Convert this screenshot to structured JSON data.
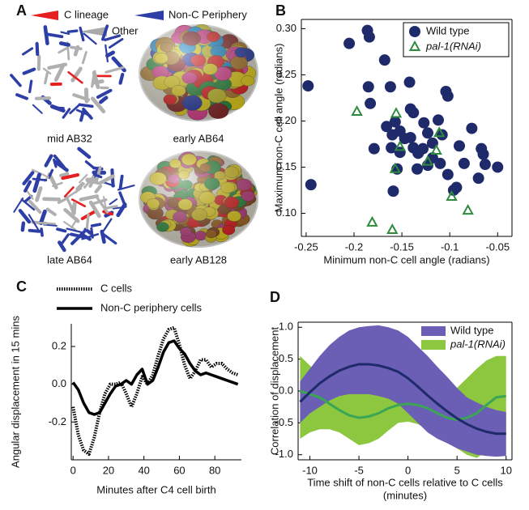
{
  "panel_a": {
    "panel": "A",
    "legend": [
      "C lineage",
      "Non-C Periphery",
      "Other"
    ],
    "captions": [
      "mid AB32",
      "early AB64",
      "late AB64",
      "early AB128"
    ]
  },
  "chart_data": [
    {
      "type": "scatter",
      "panel": "B",
      "xlabel": "Minimum non-C cell angle (radians)",
      "ylabel": "Maximum non-C cell angle (radians)",
      "xlim": [
        -0.255,
        -0.035
      ],
      "ylim": [
        0.075,
        0.31
      ],
      "xticks": [
        -0.25,
        -0.2,
        -0.15,
        -0.1,
        -0.05
      ],
      "yticks": [
        {
          "value": 0.1,
          "label": "0.10"
        },
        0.15,
        {
          "value": 0.2,
          "label": "0.20"
        },
        0.25,
        {
          "value": 0.3,
          "label": "0.30"
        }
      ],
      "legend": "upper right",
      "series": [
        {
          "name": "Wild type",
          "color": "#1f2a6b",
          "marker": "circle",
          "x": [
            -0.248,
            -0.245,
            -0.205,
            -0.186,
            -0.184,
            -0.185,
            -0.183,
            -0.168,
            -0.162,
            -0.166,
            -0.179,
            -0.161,
            -0.159,
            -0.152,
            -0.142,
            -0.141,
            -0.138,
            -0.147,
            -0.141,
            -0.138,
            -0.133,
            -0.152,
            -0.127,
            -0.123,
            -0.123,
            -0.118,
            -0.118,
            -0.112,
            -0.108,
            -0.104,
            -0.102,
            -0.102,
            -0.096,
            -0.093,
            -0.09,
            -0.085,
            -0.077,
            -0.07,
            -0.067,
            -0.065,
            -0.063,
            -0.05,
            -0.155,
            -0.16,
            -0.128,
            -0.157,
            -0.134,
            -0.11
          ],
          "values": [
            0.238,
            0.131,
            0.284,
            0.298,
            0.291,
            0.237,
            0.219,
            0.266,
            0.237,
            0.194,
            0.17,
            0.171,
            0.124,
            0.189,
            0.242,
            0.213,
            0.209,
            0.181,
            0.182,
            0.171,
            0.165,
            0.166,
            0.198,
            0.187,
            0.152,
            0.176,
            0.16,
            0.201,
            0.185,
            0.232,
            0.227,
            0.142,
            0.125,
            0.128,
            0.173,
            0.154,
            0.192,
            0.138,
            0.17,
            0.164,
            0.153,
            0.15,
            0.148,
            0.185,
            0.17,
            0.199,
            0.148,
            0.154
          ]
        },
        {
          "name": "pal-1(RNAi)",
          "color": "#2e8b3e",
          "marker": "triangle",
          "x": [
            -0.197,
            -0.156,
            -0.152,
            -0.157,
            -0.123,
            -0.111,
            -0.114,
            -0.098,
            -0.081,
            -0.181,
            -0.16
          ],
          "values": [
            0.21,
            0.208,
            0.172,
            0.148,
            0.156,
            0.187,
            0.168,
            0.118,
            0.103,
            0.09,
            0.082
          ]
        }
      ]
    },
    {
      "type": "line",
      "panel": "C",
      "xlabel": "Minutes after C4 cell birth",
      "ylabel": "Angular displacement in 15 mins",
      "xlim": [
        -1,
        95
      ],
      "ylim": [
        -0.4,
        0.32
      ],
      "xticks": [
        0,
        20,
        40,
        60,
        80
      ],
      "yticks": [
        -0.2,
        {
          "value": 0,
          "label": "0.0"
        },
        0.2
      ],
      "legend": "upper left",
      "x": [
        0,
        3,
        6,
        9,
        12,
        15,
        18,
        21,
        24,
        27,
        30,
        33,
        36,
        39,
        42,
        45,
        48,
        51,
        54,
        57,
        60,
        63,
        66,
        69,
        72,
        75,
        78,
        81,
        84,
        87,
        90,
        93
      ],
      "series": [
        {
          "name": "C cells",
          "color": "#000000",
          "linestyle": "dotted",
          "values": [
            -0.12,
            -0.27,
            -0.35,
            -0.37,
            -0.28,
            -0.15,
            -0.05,
            0.0,
            0.0,
            0.01,
            -0.05,
            -0.12,
            -0.05,
            0.04,
            0.0,
            0.05,
            0.15,
            0.24,
            0.29,
            0.3,
            0.21,
            0.1,
            0.03,
            0.07,
            0.13,
            0.13,
            0.09,
            0.11,
            0.11,
            0.08,
            0.06,
            0.05
          ]
        },
        {
          "name": "Non-C periphery cells",
          "color": "#000000",
          "linestyle": "solid",
          "values": [
            0.01,
            -0.03,
            -0.1,
            -0.15,
            -0.16,
            -0.15,
            -0.1,
            -0.05,
            -0.01,
            0.0,
            0.02,
            0.0,
            0.05,
            0.08,
            0.0,
            0.02,
            0.09,
            0.17,
            0.22,
            0.23,
            0.19,
            0.16,
            0.11,
            0.07,
            0.05,
            0.06,
            0.05,
            0.04,
            0.03,
            0.02,
            0.01,
            0.0
          ]
        }
      ]
    },
    {
      "type": "band",
      "panel": "D",
      "xlabel": [
        "Time shift of non-C cells relative to C cells",
        "(minutes)"
      ],
      "ylabel": "Correlation of displacement",
      "xlim": [
        -11.2,
        10.6
      ],
      "ylim": [
        -1.08,
        1.08
      ],
      "xticks": [
        -10,
        -5,
        0,
        5,
        10
      ],
      "yticks": [
        {
          "value": -1,
          "label": "-1.0"
        },
        -0.5,
        {
          "value": 0,
          "label": "0.0"
        },
        0.5,
        {
          "value": 1,
          "label": "1.0"
        }
      ],
      "legend": "upper right",
      "x": [
        -11,
        -10,
        -9,
        -8,
        -7,
        -6,
        -5,
        -4,
        -3,
        -2,
        -1,
        0,
        1,
        2,
        3,
        4,
        5,
        6,
        7,
        8,
        9,
        10
      ],
      "series": [
        {
          "name": "Wild type",
          "color": "#6b5fb5",
          "line_color": "#1f2a6b",
          "values": [
            -0.17,
            -0.02,
            0.12,
            0.23,
            0.32,
            0.38,
            0.42,
            0.42,
            0.4,
            0.36,
            0.3,
            0.2,
            0.07,
            -0.07,
            -0.2,
            -0.32,
            -0.43,
            -0.52,
            -0.59,
            -0.64,
            -0.67,
            -0.67
          ],
          "upper": [
            0.15,
            0.35,
            0.55,
            0.72,
            0.85,
            0.95,
            1.0,
            1.02,
            1.03,
            1.0,
            0.95,
            0.85,
            0.7,
            0.55,
            0.38,
            0.22,
            0.05,
            -0.1,
            -0.18,
            -0.25,
            -0.3,
            -0.33
          ],
          "lower": [
            -0.5,
            -0.35,
            -0.25,
            -0.15,
            -0.08,
            -0.05,
            -0.05,
            -0.05,
            -0.08,
            -0.12,
            -0.2,
            -0.35,
            -0.5,
            -0.65,
            -0.75,
            -0.82,
            -0.9,
            -0.95,
            -1.0,
            -1.02,
            -1.03,
            -1.02
          ]
        },
        {
          "name": "pal-1(RNAi)",
          "color": "#8dc63f",
          "line_color": "#3aa655",
          "values": [
            0.0,
            -0.05,
            -0.1,
            -0.2,
            -0.3,
            -0.38,
            -0.42,
            -0.4,
            -0.35,
            -0.27,
            -0.22,
            -0.2,
            -0.22,
            -0.27,
            -0.35,
            -0.42,
            -0.45,
            -0.42,
            -0.35,
            -0.22,
            -0.1,
            -0.08
          ],
          "upper": [
            0.55,
            0.4,
            0.25,
            0.1,
            0.05,
            0.02,
            0.0,
            0.0,
            0.0,
            0.05,
            0.08,
            0.08,
            0.05,
            0.0,
            0.0,
            0.0,
            0.05,
            0.2,
            0.35,
            0.48,
            0.55,
            0.55
          ],
          "lower": [
            -0.75,
            -0.65,
            -0.6,
            -0.6,
            -0.65,
            -0.75,
            -0.85,
            -0.82,
            -0.75,
            -0.62,
            -0.5,
            -0.48,
            -0.52,
            -0.6,
            -0.7,
            -0.8,
            -0.9,
            -1.0,
            -1.05,
            -0.95,
            -0.8,
            -0.65
          ]
        }
      ]
    }
  ]
}
